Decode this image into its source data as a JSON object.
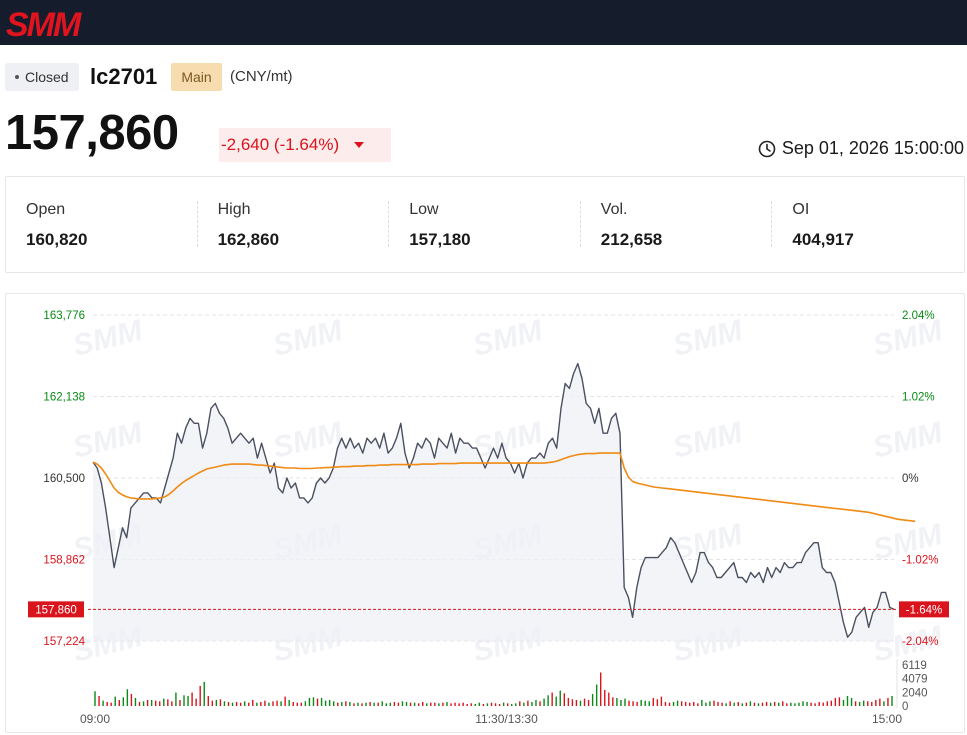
{
  "brand": {
    "logo_text": "SMM",
    "logo_color": "#e0141e",
    "topbar_color": "#151c2c"
  },
  "header": {
    "status": "Closed",
    "contract": "lc2701",
    "tag": "Main",
    "unit": "(CNY/mt)",
    "last_price": "157,860",
    "change": "-2,640 (-1.64%)",
    "timestamp": "Sep 01, 2026 15:00:00"
  },
  "stats": [
    {
      "label": "Open",
      "value": "160,820"
    },
    {
      "label": "High",
      "value": "162,860"
    },
    {
      "label": "Low",
      "value": "157,180"
    },
    {
      "label": "Vol.",
      "value": "212,658"
    },
    {
      "label": "OI",
      "value": "404,917"
    }
  ],
  "colors": {
    "up": "#0a8a17",
    "down": "#d9141c",
    "price_line": "#4a5060",
    "avg_line": "#f08a14",
    "neutral": "#333333"
  },
  "chart_data": {
    "type": "line",
    "watermark": "SMM",
    "reference_price": 160500,
    "last_price": 157860,
    "last_price_label": "157,860",
    "last_change_label": "-1.64%",
    "y_ticks": [
      {
        "value": 163776,
        "label": "163,776",
        "pct": "2.04%",
        "tone": "up"
      },
      {
        "value": 162138,
        "label": "162,138",
        "pct": "1.02%",
        "tone": "up"
      },
      {
        "value": 160500,
        "label": "160,500",
        "pct": "0%",
        "tone": "neutral"
      },
      {
        "value": 158862,
        "label": "158,862",
        "pct": "-1.02%",
        "tone": "down"
      },
      {
        "value": 157224,
        "label": "157,224",
        "pct": "-2.04%",
        "tone": "down"
      }
    ],
    "ylim": [
      157224,
      163776
    ],
    "x_labels": [
      "09:00",
      "11:30/13:30",
      "15:00"
    ],
    "x_label_positions": [
      0,
      0.5,
      1
    ],
    "volume_ticks": [
      {
        "value": 6119,
        "label": "6119"
      },
      {
        "value": 4079,
        "label": "4079"
      },
      {
        "value": 2040,
        "label": "2040"
      },
      {
        "value": 0,
        "label": "0"
      }
    ],
    "series": [
      {
        "name": "Price",
        "values": [
          160820,
          160700,
          160400,
          159900,
          159300,
          158700,
          159100,
          159500,
          159300,
          159900,
          160000,
          160100,
          160200,
          160200,
          160100,
          160100,
          160000,
          160300,
          160600,
          160900,
          161400,
          161200,
          161500,
          161700,
          161600,
          161600,
          161100,
          161400,
          161900,
          162000,
          161800,
          161700,
          161500,
          161200,
          161300,
          161400,
          161300,
          161200,
          161300,
          160900,
          161200,
          160900,
          160600,
          160800,
          160300,
          160200,
          160500,
          160300,
          160400,
          160100,
          160100,
          160000,
          160100,
          160400,
          160500,
          160400,
          160500,
          160700,
          161100,
          161300,
          161100,
          161300,
          161100,
          161200,
          161000,
          161300,
          161200,
          161300,
          161100,
          161400,
          161000,
          161100,
          161300,
          161600,
          161000,
          160700,
          160900,
          161200,
          161100,
          161300,
          161200,
          160900,
          161300,
          161200,
          161100,
          161400,
          161000,
          161300,
          161200,
          161200,
          161100,
          161100,
          160900,
          160700,
          160900,
          161100,
          160900,
          161200,
          160900,
          160800,
          160600,
          160800,
          160500,
          160800,
          160900,
          160900,
          161000,
          160900,
          161200,
          161300,
          161100,
          161900,
          162400,
          162300,
          162600,
          162800,
          162500,
          162000,
          161900,
          161600,
          161900,
          161400,
          161400,
          161700,
          161800,
          161400,
          158300,
          158100,
          157700,
          158300,
          158700,
          158900,
          158900,
          158900,
          158900,
          159000,
          159100,
          159300,
          159200,
          159000,
          158800,
          158600,
          158400,
          158600,
          159000,
          159000,
          158800,
          158700,
          158500,
          158500,
          158600,
          158700,
          158800,
          158500,
          158500,
          158400,
          158600,
          158500,
          158600,
          158400,
          158700,
          158500,
          158700,
          158600,
          158800,
          158700,
          158700,
          158800,
          158800,
          159000,
          159100,
          159200,
          159200,
          158700,
          158600,
          158600,
          158400,
          158000,
          157600,
          157300,
          157400,
          157700,
          157800,
          157900,
          157500,
          157800,
          157900,
          158200,
          158200,
          157900,
          157860
        ]
      },
      {
        "name": "Average",
        "values": [
          160820,
          160780,
          160700,
          160580,
          160440,
          160300,
          160210,
          160160,
          160120,
          160100,
          160090,
          160080,
          160080,
          160080,
          160080,
          160090,
          160100,
          160120,
          160170,
          160240,
          160320,
          160390,
          160450,
          160500,
          160550,
          160600,
          160640,
          160680,
          160700,
          160720,
          160740,
          160760,
          160770,
          160780,
          160780,
          160780,
          160780,
          160780,
          160770,
          160760,
          160760,
          160750,
          160740,
          160730,
          160720,
          160710,
          160700,
          160700,
          160700,
          160690,
          160690,
          160690,
          160690,
          160700,
          160700,
          160710,
          160710,
          160720,
          160720,
          160730,
          160730,
          160730,
          160740,
          160740,
          160740,
          160750,
          160750,
          160750,
          160760,
          160760,
          160760,
          160770,
          160770,
          160770,
          160770,
          160770,
          160770,
          160770,
          160780,
          160780,
          160780,
          160780,
          160790,
          160790,
          160790,
          160790,
          160790,
          160800,
          160800,
          160800,
          160800,
          160800,
          160800,
          160800,
          160800,
          160800,
          160800,
          160800,
          160800,
          160800,
          160800,
          160800,
          160800,
          160800,
          160800,
          160800,
          160800,
          160800,
          160810,
          160820,
          160840,
          160870,
          160900,
          160930,
          160950,
          160970,
          160980,
          160990,
          160990,
          160990,
          161000,
          161000,
          161000,
          161000,
          161000,
          161000,
          160700,
          160520,
          160430,
          160400,
          160380,
          160360,
          160340,
          160320,
          160310,
          160300,
          160290,
          160280,
          160270,
          160260,
          160250,
          160240,
          160230,
          160220,
          160210,
          160200,
          160190,
          160180,
          160170,
          160160,
          160150,
          160140,
          160130,
          160120,
          160110,
          160100,
          160090,
          160080,
          160070,
          160060,
          160050,
          160040,
          160030,
          160020,
          160010,
          160000,
          159990,
          159980,
          159970,
          159960,
          159950,
          159940,
          159930,
          159920,
          159910,
          159900,
          159890,
          159880,
          159870,
          159860,
          159850,
          159840,
          159830,
          159820,
          159810,
          159790,
          159770,
          159750,
          159730,
          159710,
          159690,
          159670,
          159660,
          159650,
          159640,
          159630
        ]
      }
    ],
    "volume": [
      2200,
      1500,
      800,
      600,
      500,
      1400,
      900,
      1300,
      2500,
      1800,
      1200,
      600,
      700,
      900,
      900,
      800,
      700,
      1100,
      1000,
      700,
      2000,
      900,
      1600,
      1500,
      2000,
      1100,
      3000,
      3600,
      1500,
      800,
      900,
      1000,
      700,
      600,
      500,
      600,
      500,
      700,
      500,
      900,
      500,
      600,
      800,
      500,
      700,
      800,
      700,
      1400,
      900,
      600,
      500,
      500,
      700,
      1200,
      1300,
      1100,
      1200,
      800,
      900,
      700,
      500,
      600,
      700,
      600,
      400,
      500,
      400,
      500,
      600,
      500,
      500,
      700,
      400,
      500,
      600,
      500,
      700,
      600,
      500,
      500,
      400,
      600,
      400,
      500,
      500,
      400,
      500,
      600,
      400,
      500,
      400,
      500,
      300,
      400,
      300,
      500,
      300,
      400,
      500,
      400,
      300,
      500,
      400,
      300,
      400,
      700,
      500,
      800,
      600,
      900,
      700,
      1100,
      1600,
      2000,
      1400,
      2300,
      1900,
      1200,
      1000,
      900,
      800,
      1100,
      900,
      1800,
      3200,
      5000,
      2400,
      2000,
      1300,
      1200,
      900,
      1100,
      800,
      700,
      600,
      900,
      800,
      700,
      1200,
      1000,
      1400,
      600,
      500,
      600,
      800,
      700,
      600,
      500,
      600,
      400,
      900,
      500,
      700,
      800,
      600,
      500,
      400,
      700,
      500,
      600,
      400,
      500,
      700,
      500,
      400,
      500,
      600,
      500,
      600,
      500,
      700,
      400,
      500,
      400,
      500,
      700,
      600,
      500,
      400,
      600,
      500,
      700,
      800,
      1200,
      1300,
      900,
      1500,
      1200,
      700,
      600,
      800,
      700,
      600,
      900,
      1100,
      700,
      1200,
      1500
    ],
    "volume_up": [
      true,
      false,
      true,
      false,
      false,
      true,
      false,
      true,
      true,
      false,
      true,
      false,
      true,
      false,
      true,
      false,
      false,
      true,
      false,
      false,
      true,
      false,
      true,
      true,
      false,
      false,
      false,
      true,
      false,
      false,
      true,
      false,
      true,
      false,
      true,
      false,
      false,
      true,
      false,
      false,
      true,
      false,
      false,
      true,
      false,
      false,
      true,
      false,
      true,
      false,
      false,
      false,
      true,
      true,
      true,
      false,
      true,
      true,
      true,
      true,
      false,
      true,
      false,
      true,
      false,
      true,
      false,
      true,
      false,
      true,
      false,
      true,
      true,
      true,
      false,
      false,
      true,
      true,
      false,
      true,
      false,
      false,
      true,
      false,
      false,
      true,
      false,
      true,
      false,
      false,
      false,
      false,
      false,
      false,
      true,
      true,
      false,
      true,
      false,
      false,
      false,
      true,
      false,
      true,
      true,
      false,
      true,
      false,
      true,
      true,
      false,
      true,
      true,
      false,
      true,
      true,
      false,
      false,
      false,
      false,
      true,
      false,
      false,
      true,
      true,
      false,
      false,
      false,
      false,
      true,
      true,
      true,
      false,
      false,
      false,
      true,
      true,
      true,
      false,
      false,
      false,
      false,
      false,
      true,
      true,
      false,
      false,
      false,
      false,
      false,
      true,
      true,
      true,
      false,
      false,
      false,
      true,
      false,
      true,
      false,
      true,
      false,
      true,
      false,
      true,
      false,
      false,
      true,
      false,
      true,
      false,
      false,
      true,
      true,
      true,
      true,
      true,
      false,
      false,
      false,
      false,
      false,
      false,
      false,
      false,
      true,
      true,
      true,
      false,
      true,
      true,
      false,
      false,
      false,
      false,
      true,
      false,
      true,
      true,
      false,
      true,
      true
    ]
  }
}
